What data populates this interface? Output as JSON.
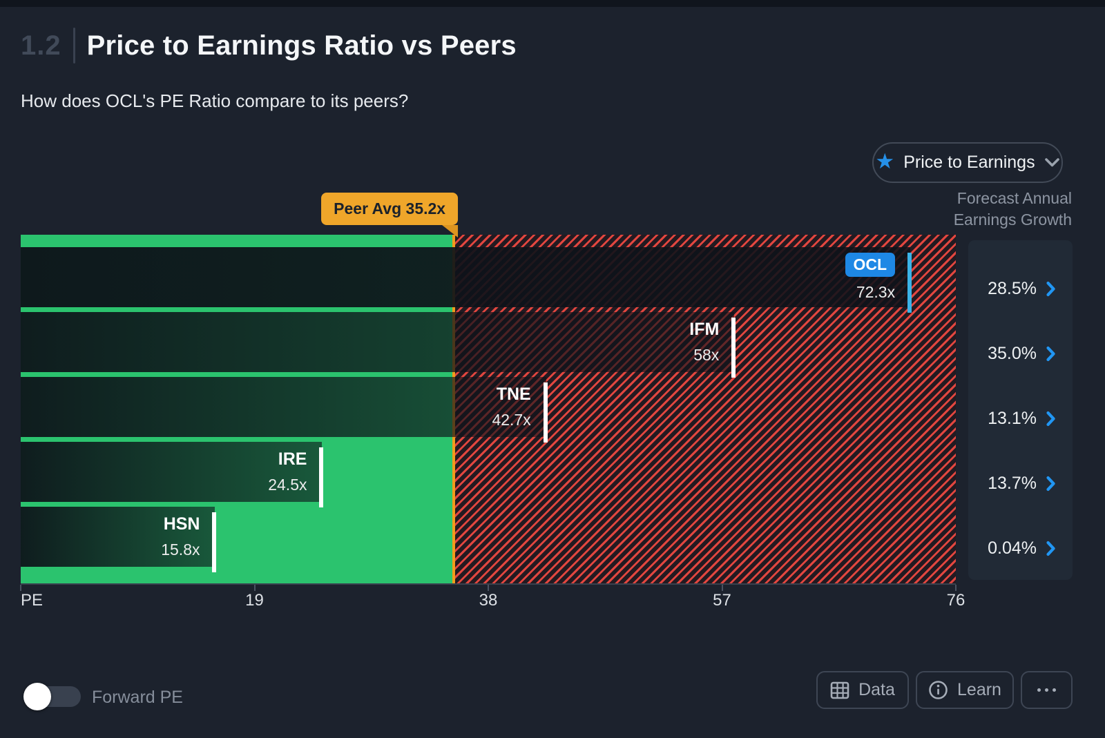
{
  "header": {
    "section_number": "1.2",
    "title": "Price to Earnings Ratio vs Peers",
    "subtitle": "How does OCL's PE Ratio compare to its peers?"
  },
  "metric_dropdown": {
    "label": "Price to Earnings",
    "icon": "star-icon",
    "star_glyph": "★",
    "chevron": "chevron-down-icon"
  },
  "chart_data": {
    "type": "bar",
    "orientation": "horizontal",
    "xlabel": "PE",
    "xlim": [
      0,
      76
    ],
    "x_ticks": [
      {
        "value": 0,
        "label": "PE"
      },
      {
        "value": 19,
        "label": "19"
      },
      {
        "value": 38,
        "label": "38"
      },
      {
        "value": 57,
        "label": "57"
      },
      {
        "value": 76,
        "label": "76"
      }
    ],
    "peer_avg": {
      "value": 35.2,
      "label": "Peer Avg 35.2x"
    },
    "right_axis_label": [
      "Forecast Annual",
      "Earnings Growth"
    ],
    "series": [
      {
        "ticker": "OCL",
        "value": 72.3,
        "value_label": "72.3x",
        "growth_label": "28.5%",
        "is_subject": true
      },
      {
        "ticker": "IFM",
        "value": 58,
        "value_label": "58x",
        "growth_label": "35.0%",
        "is_subject": false
      },
      {
        "ticker": "TNE",
        "value": 42.7,
        "value_label": "42.7x",
        "growth_label": "13.1%",
        "is_subject": false
      },
      {
        "ticker": "IRE",
        "value": 24.5,
        "value_label": "24.5x",
        "growth_label": "13.7%",
        "is_subject": false
      },
      {
        "ticker": "HSN",
        "value": 15.8,
        "value_label": "15.8x",
        "growth_label": "0.04%",
        "is_subject": false
      }
    ],
    "colors": {
      "below_avg_zone": "#2bc36e",
      "above_avg_stripe": "#e2463f",
      "above_avg_bg": "#231a21",
      "peer_avg_line": "#f09c1c",
      "peer_badge_bg": "#efa62a",
      "subject_badge_bg": "#1e88e5",
      "subject_marker": "#3bb3e8",
      "peer_marker": "#ffffff",
      "growth_chevron": "#2196f3"
    }
  },
  "footer": {
    "toggle_label": "Forward PE",
    "toggle_state": "off",
    "data_button": "Data",
    "learn_button": "Learn",
    "more_button_icon": "ellipsis-icon",
    "data_button_icon": "table-grid-icon",
    "learn_button_icon": "info-circle-icon"
  }
}
